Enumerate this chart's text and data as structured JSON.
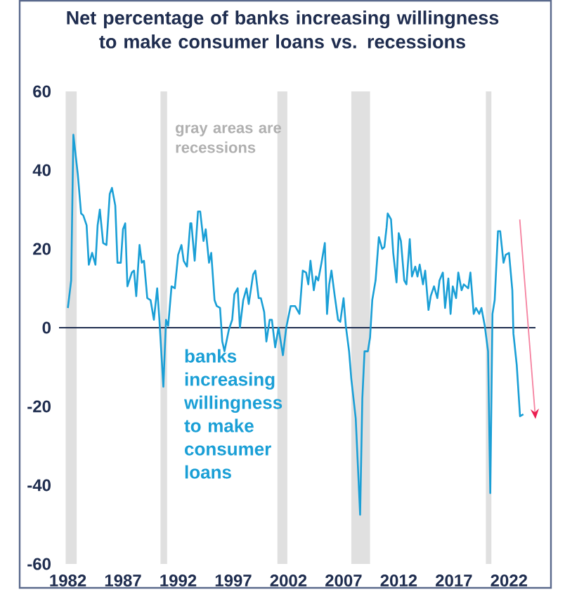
{
  "chart_data": {
    "type": "line",
    "title": "Net percentage of banks increasing willingness to make consumer loans vs. recessions",
    "annotations": [
      "gray areas are recessions"
    ],
    "xlim": [
      1981.2,
      2024.4
    ],
    "ylim": [
      -60,
      60
    ],
    "xticks": [
      1982,
      1987,
      1992,
      1997,
      2002,
      2007,
      2012,
      2017,
      2022
    ],
    "yticks": [
      -60,
      -40,
      -20,
      0,
      20,
      40,
      60
    ],
    "ref_lines": [
      {
        "axis": "y",
        "value": 0,
        "color": "#1f2d4f"
      }
    ],
    "bands": [
      {
        "axis": "x",
        "from": 1981.8,
        "to": 1982.8,
        "color": "#e0e0e0"
      },
      {
        "axis": "x",
        "from": 1990.4,
        "to": 1991.0,
        "color": "#e0e0e0"
      },
      {
        "axis": "x",
        "from": 2001.0,
        "to": 2001.9,
        "color": "#e0e0e0"
      },
      {
        "axis": "x",
        "from": 2007.7,
        "to": 2009.4,
        "color": "#e0e0e0"
      },
      {
        "axis": "x",
        "from": 2019.9,
        "to": 2020.4,
        "color": "#e0e0e0"
      }
    ],
    "series": [
      {
        "name": "banks increasing willingness to make consumer loans",
        "color": "#1a9fd6",
        "x": [
          1982.0,
          1982.3,
          1982.5,
          1982.9,
          1983.2,
          1983.4,
          1983.7,
          1983.9,
          1984.2,
          1984.5,
          1984.7,
          1984.9,
          1985.2,
          1985.5,
          1985.8,
          1986.0,
          1986.3,
          1986.5,
          1986.8,
          1987.0,
          1987.2,
          1987.4,
          1987.8,
          1988.0,
          1988.2,
          1988.5,
          1988.7,
          1988.9,
          1989.2,
          1989.5,
          1989.8,
          1990.1,
          1990.3,
          1990.66,
          1990.9,
          1991.1,
          1991.4,
          1991.7,
          1992.0,
          1992.3,
          1992.5,
          1992.8,
          1993.1,
          1993.2,
          1993.5,
          1993.8,
          1994.0,
          1994.3,
          1994.5,
          1994.8,
          1995.0,
          1995.3,
          1995.5,
          1995.8,
          1996.0,
          1996.2,
          1996.6,
          1996.9,
          1997.1,
          1997.4,
          1997.6,
          1997.9,
          1998.2,
          1998.4,
          1998.8,
          1999.0,
          1999.3,
          1999.5,
          1999.8,
          2000.0,
          2000.3,
          2000.5,
          2000.8,
          2001.1,
          2001.5,
          2001.8,
          2002.2,
          2002.6,
          2003.0,
          2003.3,
          2003.6,
          2003.8,
          2004.0,
          2004.3,
          2004.5,
          2004.7,
          2005.0,
          2005.3,
          2005.5,
          2005.7,
          2005.9,
          2006.2,
          2006.5,
          2006.7,
          2007.0,
          2007.2,
          2007.5,
          2007.7,
          2008.1,
          2008.5,
          2008.7,
          2008.9,
          2009.2,
          2009.4,
          2009.6,
          2009.9,
          2010.2,
          2010.5,
          2010.7,
          2010.9,
          2011.0,
          2011.3,
          2011.5,
          2011.8,
          2012.0,
          2012.2,
          2012.5,
          2012.7,
          2013.0,
          2013.2,
          2013.5,
          2013.7,
          2013.9,
          2014.2,
          2014.4,
          2014.7,
          2014.9,
          2015.2,
          2015.5,
          2015.7,
          2016.0,
          2016.2,
          2016.5,
          2016.7,
          2016.9,
          2017.2,
          2017.4,
          2017.7,
          2017.9,
          2018.3,
          2018.5,
          2018.8,
          2019.0,
          2019.3,
          2019.5,
          2019.8,
          2020.1,
          2020.3,
          2020.5,
          2020.7,
          2021.0,
          2021.2,
          2021.5,
          2021.7,
          2022.0,
          2022.3,
          2022.4,
          2022.7,
          2023.0,
          2023.3
        ],
        "values": [
          5,
          12,
          49,
          39,
          29,
          28.5,
          26,
          16,
          19,
          16,
          26,
          30,
          21.5,
          21,
          34,
          35.5,
          31,
          16.5,
          16.5,
          25,
          26.5,
          10.5,
          14,
          14.5,
          8,
          21,
          16.5,
          17,
          7.5,
          7,
          2,
          10,
          2,
          -15,
          2,
          0.5,
          10.5,
          10,
          18.5,
          21,
          17,
          15.5,
          26.5,
          26.5,
          17,
          29.5,
          29.5,
          22,
          25,
          16.5,
          19,
          7,
          5.5,
          5,
          -3.5,
          -6,
          -0.5,
          2,
          8.5,
          10,
          0,
          7,
          10,
          6,
          13.5,
          14.5,
          7.5,
          7.5,
          4,
          -3.5,
          2,
          2,
          -5,
          0,
          -7,
          0,
          5.5,
          5.5,
          3.5,
          14.5,
          14,
          11,
          17,
          9.5,
          13,
          12,
          16.5,
          21.5,
          3.5,
          11,
          14.5,
          8,
          2,
          1.5,
          7.5,
          0.5,
          -6,
          -13,
          -23,
          -47.5,
          -18,
          -6,
          -6,
          -2.5,
          7,
          12,
          23,
          20,
          20.5,
          25.5,
          29,
          27.5,
          19,
          11.5,
          24,
          22,
          12,
          11,
          22.5,
          13,
          15.5,
          13,
          16,
          11,
          14.5,
          4.5,
          8,
          10.5,
          7.5,
          12,
          14,
          5,
          12.5,
          3.5,
          10.5,
          7.5,
          14,
          9.5,
          11,
          10,
          14,
          3.5,
          5,
          3.5,
          5,
          0.5,
          -6,
          -42,
          3.5,
          7,
          24.5,
          24.5,
          16.5,
          18.5,
          19,
          9.5,
          -1.5,
          -9.5,
          -22.5,
          -22
        ]
      }
    ]
  }
}
